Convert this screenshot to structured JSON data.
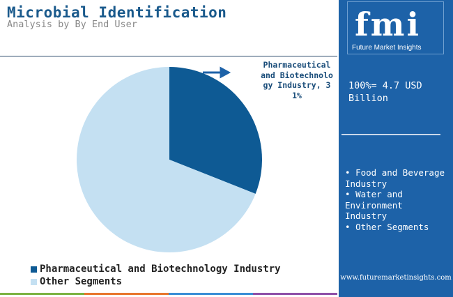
{
  "header": {
    "title": "Microbial Identification",
    "subtitle": "Analysis by By End User"
  },
  "chart_data": {
    "type": "pie",
    "categories": [
      "Pharmaceutical and Biotechnology Industry",
      "Other Segments"
    ],
    "values": [
      31,
      69
    ],
    "colors": [
      "#0e5a94",
      "#c4e0f2"
    ],
    "unit": "%",
    "callout": "Pharmaceutical and Biotechnology Industry, 31%",
    "legend_position": "bottom-left"
  },
  "legend": {
    "items": [
      {
        "label": "Pharmaceutical and Biotechnology Industry",
        "color": "#0e5a94"
      },
      {
        "label": "Other Segments",
        "color": "#c4e0f2"
      }
    ]
  },
  "panel": {
    "logo": {
      "text": "fmi",
      "subtitle": "Future Market Insights"
    },
    "market_size": "100%= 4.7 USD Billion",
    "segments": [
      "Food and Beverage Industry",
      "Water and Environment Industry",
      "Other Segments"
    ],
    "url": "www.futuremarketinsights.com"
  },
  "bottom_bar": {
    "colors": [
      "#7cb342",
      "#e8772e",
      "#3a8ed6",
      "#8e4fa8"
    ]
  }
}
